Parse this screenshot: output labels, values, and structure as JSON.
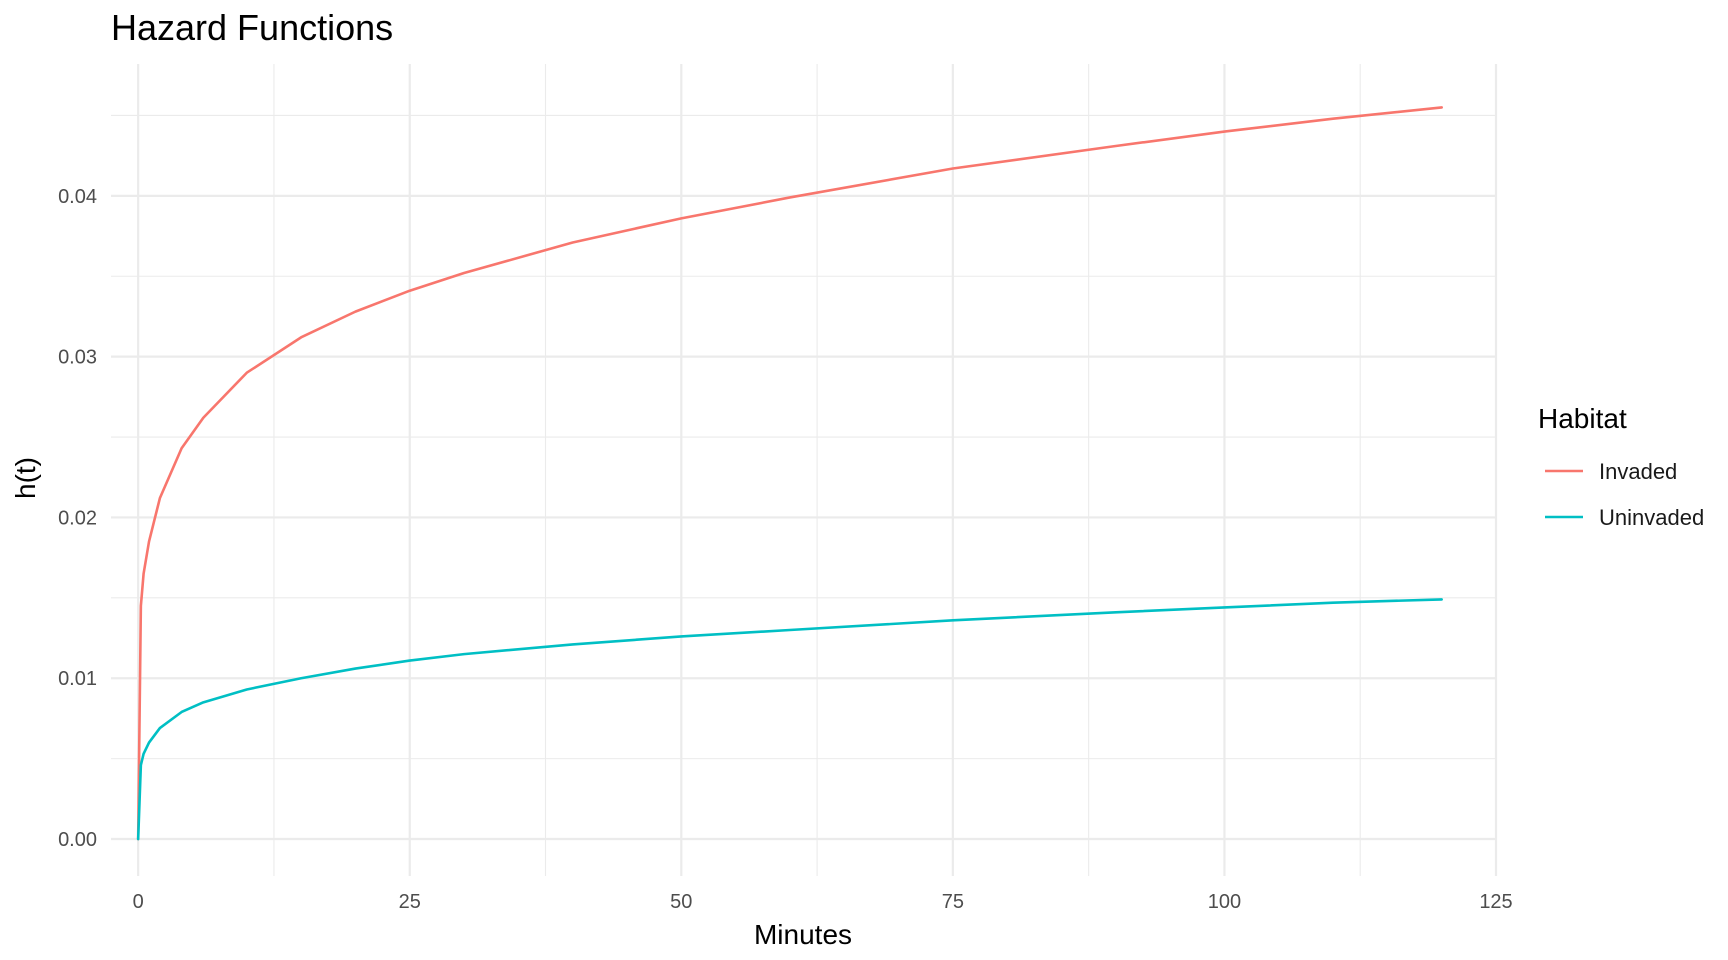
{
  "chart_data": {
    "type": "line",
    "title": "Hazard Functions",
    "xlabel": "Minutes",
    "ylabel": "h(t)",
    "xlim": [
      -2.5,
      125
    ],
    "ylim": [
      -0.0023,
      0.0482
    ],
    "x_ticks": [
      0,
      25,
      50,
      75,
      100,
      125
    ],
    "x_tick_labels": [
      "0",
      "25",
      "50",
      "75",
      "100",
      "125"
    ],
    "y_ticks": [
      0.0,
      0.01,
      0.02,
      0.03,
      0.04
    ],
    "y_tick_labels": [
      "0.00",
      "0.01",
      "0.02",
      "0.03",
      "0.04"
    ],
    "grid": true,
    "legend": {
      "title": "Habitat",
      "position": "right"
    },
    "x": [
      0,
      0.25,
      0.5,
      1,
      2,
      4,
      6,
      10,
      15,
      20,
      25,
      30,
      40,
      50,
      60,
      75,
      90,
      100,
      110,
      120
    ],
    "series": [
      {
        "name": "Invaded",
        "color": "#F8766D",
        "values": [
          0,
          0.0145,
          0.0165,
          0.0185,
          0.0212,
          0.0243,
          0.0262,
          0.029,
          0.0312,
          0.0328,
          0.0341,
          0.0352,
          0.0371,
          0.0386,
          0.0399,
          0.0417,
          0.0431,
          0.044,
          0.0448,
          0.0455
        ]
      },
      {
        "name": "Uninvaded",
        "color": "#00BFC4",
        "values": [
          0,
          0.0046,
          0.0053,
          0.006,
          0.0069,
          0.0079,
          0.0085,
          0.0093,
          0.01,
          0.0106,
          0.0111,
          0.0115,
          0.0121,
          0.0126,
          0.013,
          0.0136,
          0.0141,
          0.0144,
          0.0147,
          0.0149
        ]
      }
    ]
  }
}
